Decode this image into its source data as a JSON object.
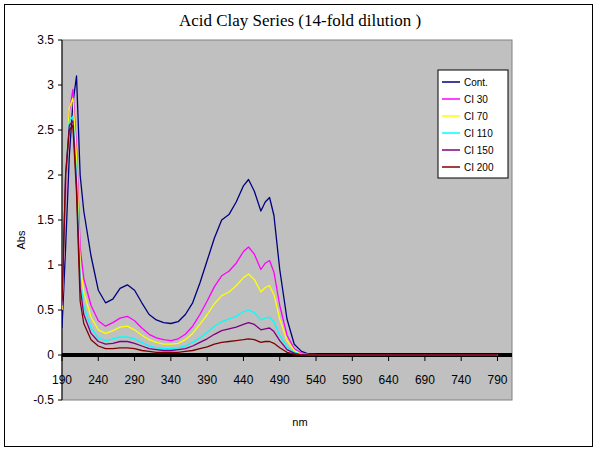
{
  "chart_data": {
    "type": "line",
    "title": "Acid Clay Series (14-fold dilution )",
    "x_label": "nm",
    "y_label": "Abs",
    "x": [
      190,
      195,
      200,
      205,
      210,
      215,
      220,
      230,
      240,
      250,
      260,
      270,
      280,
      290,
      300,
      310,
      320,
      330,
      340,
      350,
      360,
      370,
      380,
      390,
      400,
      410,
      420,
      430,
      440,
      447,
      455,
      464,
      470,
      476,
      482,
      490,
      500,
      510,
      520,
      530,
      550,
      600,
      700,
      790
    ],
    "series": [
      {
        "name": "Cont.",
        "color": "#000080",
        "values": [
          0.3,
          1.2,
          2.2,
          2.8,
          3.1,
          2.0,
          1.6,
          1.1,
          0.72,
          0.58,
          0.62,
          0.74,
          0.78,
          0.72,
          0.58,
          0.45,
          0.39,
          0.36,
          0.35,
          0.37,
          0.45,
          0.58,
          0.8,
          1.05,
          1.3,
          1.5,
          1.56,
          1.7,
          1.88,
          1.95,
          1.82,
          1.6,
          1.7,
          1.75,
          1.55,
          0.95,
          0.4,
          0.12,
          0.04,
          0.01,
          0,
          0,
          0,
          0
        ]
      },
      {
        "name": "CI 30",
        "color": "#ff00ff",
        "values": [
          0.5,
          1.8,
          2.7,
          2.95,
          2.3,
          1.2,
          0.85,
          0.55,
          0.38,
          0.32,
          0.36,
          0.41,
          0.43,
          0.38,
          0.3,
          0.23,
          0.19,
          0.17,
          0.16,
          0.18,
          0.23,
          0.32,
          0.45,
          0.6,
          0.76,
          0.88,
          0.93,
          1.02,
          1.15,
          1.2,
          1.12,
          0.95,
          1.02,
          1.05,
          0.92,
          0.55,
          0.22,
          0.07,
          0.02,
          0.01,
          0,
          0,
          0,
          0
        ]
      },
      {
        "name": "CI 70",
        "color": "#ffff00",
        "values": [
          0.5,
          1.9,
          2.75,
          2.85,
          2.2,
          1.0,
          0.7,
          0.42,
          0.28,
          0.24,
          0.27,
          0.31,
          0.32,
          0.28,
          0.22,
          0.17,
          0.14,
          0.12,
          0.12,
          0.13,
          0.17,
          0.24,
          0.34,
          0.45,
          0.57,
          0.66,
          0.7,
          0.77,
          0.86,
          0.9,
          0.84,
          0.7,
          0.75,
          0.77,
          0.67,
          0.4,
          0.16,
          0.05,
          0.01,
          0,
          0,
          0,
          0,
          0
        ]
      },
      {
        "name": "CI 110",
        "color": "#00ffff",
        "values": [
          0.55,
          2.0,
          2.6,
          2.65,
          2.0,
          0.85,
          0.55,
          0.3,
          0.19,
          0.16,
          0.18,
          0.2,
          0.2,
          0.18,
          0.14,
          0.1,
          0.08,
          0.07,
          0.07,
          0.08,
          0.1,
          0.14,
          0.19,
          0.25,
          0.32,
          0.37,
          0.4,
          0.43,
          0.48,
          0.5,
          0.47,
          0.39,
          0.41,
          0.42,
          0.37,
          0.22,
          0.09,
          0.03,
          0.01,
          0,
          0,
          0,
          0,
          0
        ]
      },
      {
        "name": "CI 150",
        "color": "#800080",
        "values": [
          0.55,
          2.0,
          2.55,
          2.6,
          1.9,
          0.75,
          0.45,
          0.24,
          0.15,
          0.12,
          0.13,
          0.15,
          0.15,
          0.13,
          0.1,
          0.07,
          0.06,
          0.05,
          0.05,
          0.06,
          0.07,
          0.1,
          0.14,
          0.18,
          0.23,
          0.27,
          0.29,
          0.31,
          0.34,
          0.36,
          0.34,
          0.28,
          0.29,
          0.3,
          0.26,
          0.16,
          0.06,
          0.02,
          0,
          0,
          0,
          0,
          0,
          0
        ]
      },
      {
        "name": "CI 200",
        "color": "#800000",
        "values": [
          0.6,
          2.0,
          2.5,
          2.55,
          1.8,
          0.6,
          0.35,
          0.17,
          0.1,
          0.07,
          0.07,
          0.08,
          0.08,
          0.07,
          0.05,
          0.04,
          0.03,
          0.03,
          0.03,
          0.03,
          0.04,
          0.05,
          0.07,
          0.09,
          0.12,
          0.14,
          0.15,
          0.16,
          0.17,
          0.18,
          0.17,
          0.14,
          0.15,
          0.15,
          0.13,
          0.08,
          0.03,
          0.01,
          0,
          0,
          0,
          0,
          0,
          0
        ]
      }
    ],
    "xlim": [
      190,
      810
    ],
    "xticks": [
      190,
      240,
      290,
      340,
      390,
      440,
      490,
      540,
      590,
      640,
      690,
      740,
      790
    ],
    "ylim": [
      -0.5,
      3.5
    ],
    "yticks": [
      -0.5,
      0,
      0.5,
      1,
      1.5,
      2,
      2.5,
      3,
      3.5
    ],
    "legend": "right",
    "grid": false
  }
}
